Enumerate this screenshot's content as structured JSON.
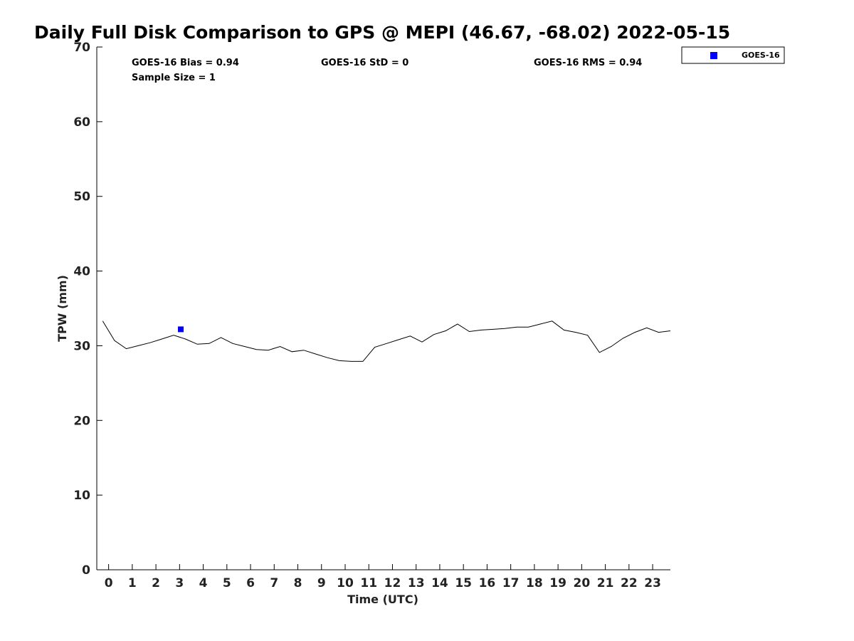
{
  "chart_data": {
    "type": "line",
    "title": "Daily Full Disk Comparison to GPS @ MEPI (46.67, -68.02) 2022-05-15",
    "xlabel": "Time (UTC)",
    "ylabel": "TPW (mm)",
    "xlim": [
      -0.5,
      23.75
    ],
    "ylim": [
      0,
      70
    ],
    "xticks": [
      "0",
      "1",
      "2",
      "3",
      "4",
      "5",
      "6",
      "7",
      "8",
      "9",
      "10",
      "11",
      "12",
      "13",
      "14",
      "15",
      "16",
      "17",
      "18",
      "19",
      "20",
      "21",
      "22",
      "23"
    ],
    "yticks": [
      "0",
      "10",
      "20",
      "30",
      "40",
      "50",
      "60",
      "70"
    ],
    "stats": {
      "bias": "GOES-16 Bias = 0.94",
      "std": "GOES-16 StD = 0",
      "rms": "GOES-16 RMS = 0.94",
      "sample": "Sample Size = 1"
    },
    "legend": {
      "position": "top-right-outside",
      "label": "GOES-16",
      "color": "#0000ff"
    },
    "series": [
      {
        "kind": "line",
        "color": "#000000",
        "x": [
          -0.25,
          0.25,
          0.75,
          1.25,
          1.75,
          2.25,
          2.75,
          3.25,
          3.75,
          4.25,
          4.75,
          5.25,
          5.75,
          6.25,
          6.75,
          7.25,
          7.75,
          8.25,
          8.75,
          9.25,
          9.75,
          10.25,
          10.75,
          11.25,
          11.75,
          12.25,
          12.75,
          13.25,
          13.75,
          14.25,
          14.75,
          15.25,
          15.75,
          16.25,
          16.75,
          17.25,
          17.75,
          18.25,
          18.75,
          19.25,
          19.75,
          20.25,
          20.75,
          21.25,
          21.75,
          22.25,
          22.75,
          23.25,
          23.75
        ],
        "values": [
          33.3,
          30.7,
          29.6,
          30.0,
          30.4,
          30.9,
          31.4,
          30.9,
          30.2,
          30.3,
          31.1,
          30.3,
          29.9,
          29.5,
          29.4,
          29.9,
          29.2,
          29.4,
          28.9,
          28.4,
          28.0,
          27.9,
          27.9,
          29.8,
          30.3,
          30.8,
          31.3,
          30.5,
          31.5,
          32.0,
          32.9,
          31.9,
          32.1,
          32.2,
          32.3,
          32.5,
          32.5,
          32.9,
          33.3,
          32.1,
          31.8,
          31.4,
          29.1,
          29.9,
          31.0,
          31.8,
          32.4,
          31.8,
          32.0
        ]
      },
      {
        "kind": "scatter",
        "name": "GOES-16",
        "color": "#0000ff",
        "x": [
          3.05
        ],
        "values": [
          32.2
        ]
      }
    ]
  }
}
